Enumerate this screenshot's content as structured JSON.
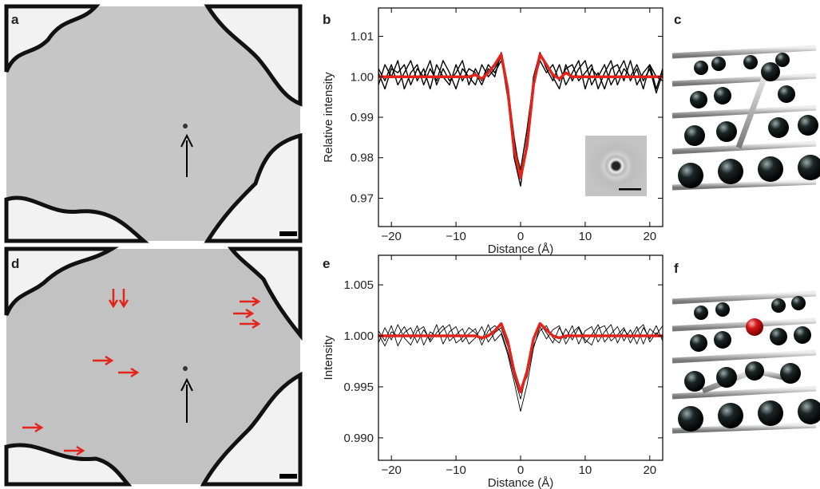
{
  "panels": [
    "a",
    "b",
    "c",
    "d",
    "e",
    "f"
  ],
  "chart_data": [
    {
      "type": "line",
      "xlabel": "Distance (Å)",
      "ylabel": "Relative intensity",
      "x": [
        -22,
        -21,
        -20,
        -19,
        -18,
        -17,
        -16,
        -15,
        -14,
        -13,
        -12,
        -11,
        -10,
        -9,
        -8,
        -7,
        -6,
        -5,
        -4,
        -3,
        -2,
        -1,
        0,
        1,
        2,
        3,
        4,
        5,
        6,
        7,
        8,
        9,
        10,
        11,
        12,
        13,
        14,
        15,
        16,
        17,
        18,
        19,
        20,
        21,
        22
      ],
      "xlim": [
        -22,
        22
      ],
      "xticks": [
        {
          "value": -20,
          "label": "−20"
        },
        {
          "value": -10,
          "label": "−10"
        },
        0,
        10,
        20
      ],
      "ylim": [
        0.963,
        1.017
      ],
      "yticks": [
        0.97,
        0.98,
        0.99,
        {
          "value": 1,
          "label": "1.00"
        },
        1.01
      ],
      "series": [
        {
          "color": "#000000",
          "linewidth": 1.4,
          "values": [
            1.002,
            0.999,
            1.003,
            0.998,
            1.001,
            1.004,
            0.999,
            1.002,
            0.997,
            1.003,
            1.0,
            0.998,
            1.003,
            0.999,
            1.002,
            1.001,
            0.998,
            1.002,
            1.0,
            1.006,
            0.996,
            0.98,
            0.973,
            0.985,
            1.0,
            1.006,
            1.002,
            0.999,
            1.003,
            0.998,
            1.001,
            1.004,
            0.997,
            1.002,
            1.0,
            1.003,
            0.998,
            1.001,
            1.004,
            0.999,
            1.002,
            0.997,
            1.003,
            1.0,
            0.999
          ]
        },
        {
          "color": "#000000",
          "linewidth": 1.4,
          "values": [
            0.998,
            1.003,
            1.0,
            1.004,
            0.997,
            1.001,
            1.003,
            0.998,
            1.002,
            0.999,
            1.004,
            1.001,
            0.997,
            1.002,
            1.0,
            0.998,
            1.003,
            1.0,
            1.002,
            1.005,
            0.995,
            0.983,
            0.977,
            0.987,
            0.999,
            1.005,
            1.003,
            1.0,
            0.997,
            1.003,
            0.999,
            1.002,
            1.004,
            0.998,
            1.001,
            0.997,
            1.002,
            1.003,
            0.999,
            1.004,
            0.998,
            1.001,
            1.003,
            0.997,
            1.002
          ]
        },
        {
          "color": "#000000",
          "linewidth": 1.4,
          "values": [
            1.001,
            0.997,
            1.002,
            1.001,
            1.003,
            0.998,
            1.002,
            1.0,
            1.004,
            0.998,
            1.002,
            0.999,
            1.001,
            1.004,
            0.998,
            1.002,
            0.999,
            1.003,
            1.001,
            1.004,
            0.998,
            0.985,
            0.975,
            0.982,
            0.998,
            1.004,
            1.001,
            1.003,
            0.999,
            1.002,
            1.003,
            0.999,
            1.001,
            1.003,
            0.997,
            1.001,
            1.004,
            0.998,
            1.002,
            1.0,
            1.003,
            0.999,
            1.002,
            0.996,
            1.001
          ]
        },
        {
          "color": "#e3241b",
          "linewidth": 3.5,
          "values": [
            1.0,
            1.0,
            1.0,
            1.0,
            1.0,
            1.0,
            1.0,
            1.0,
            1.0,
            1.0,
            1.0,
            1.0,
            1.0,
            1.0,
            1.0,
            1.0005,
            0.9995,
            1.001,
            1.003,
            1.0055,
            0.997,
            0.982,
            0.975,
            0.983,
            0.998,
            1.0055,
            1.003,
            1.0005,
            0.9995,
            1.001,
            1.0,
            1.0,
            1.0,
            1.0,
            1.0,
            1.0,
            1.0,
            1.0,
            1.0,
            1.0,
            1.0,
            1.0,
            1.0,
            1.0,
            1.0
          ]
        }
      ]
    },
    {
      "type": "line",
      "xlabel": "Distance (Å)",
      "ylabel": "Intensity",
      "x": [
        -22,
        -21,
        -20,
        -19,
        -18,
        -17,
        -16,
        -15,
        -14,
        -13,
        -12,
        -11,
        -10,
        -9,
        -8,
        -7,
        -6,
        -5,
        -4,
        -3,
        -2,
        -1,
        0,
        1,
        2,
        3,
        4,
        5,
        6,
        7,
        8,
        9,
        10,
        11,
        12,
        13,
        14,
        15,
        16,
        17,
        18,
        19,
        20,
        21,
        22
      ],
      "xlim": [
        -22,
        22
      ],
      "xticks": [
        {
          "value": -20,
          "label": "−20"
        },
        {
          "value": -10,
          "label": "−10"
        },
        0,
        10,
        20
      ],
      "ylim": [
        0.9878,
        1.0079
      ],
      "yticks": [
        {
          "value": 0.99,
          "label": "0.990"
        },
        0.995,
        {
          "value": 1,
          "label": "1.000"
        },
        1.005
      ],
      "series": [
        {
          "color": "#000000",
          "linewidth": 0.9,
          "values": [
            1.0005,
            0.9995,
            1.001,
            0.999,
            1.0003,
            1.0008,
            0.9993,
            1.0006,
            0.9996,
            1.0011,
            0.9992,
            1.0004,
            1.0009,
            0.9994,
            1.0002,
            1.0007,
            0.9991,
            1.0005,
            1.001,
            1.0004,
            0.9985,
            0.996,
            0.9938,
            0.9965,
            0.9995,
            1.0012,
            1.0003,
            0.9993,
            1.0008,
            0.9997,
            1.001,
            0.9992,
            1.0005,
            1.0009,
            0.9994,
            1.0004,
            1.0011,
            0.9993,
            1.0006,
            0.9998,
            1.0009,
            0.9992,
            1.0007,
            1.0001,
            1.001
          ]
        },
        {
          "color": "#000000",
          "linewidth": 0.9,
          "values": [
            0.9993,
            1.0008,
            0.9996,
            1.0011,
            0.9998,
            0.9991,
            1.0005,
            1.0009,
            0.9994,
            1.0003,
            1.001,
            0.9995,
            1.0001,
            1.0007,
            0.9992,
            0.9998,
            1.0009,
            0.9994,
            1.0003,
            1.0008,
            0.999,
            0.9968,
            0.9947,
            0.996,
            0.999,
            1.0005,
            1.001,
            0.9998,
            0.9993,
            1.0007,
            0.9996,
            1.0008,
            0.9993,
            1.0001,
            1.0011,
            0.9994,
            1.0002,
            1.0009,
            0.9995,
            1.0006,
            0.9992,
            1.0008,
            0.9997,
            1.001,
            0.9995
          ]
        },
        {
          "color": "#000000",
          "linewidth": 0.9,
          "values": [
            1.0002,
            0.999,
            1.0004,
            1.0,
            1.0009,
            0.9997,
            1.001,
            0.9991,
            1.0004,
            0.9999,
            1.0006,
            1.0011,
            0.9993,
            0.9998,
            1.0008,
            1.0003,
            0.9996,
            1.0011,
            0.9995,
            1.0002,
            0.9982,
            0.9955,
            0.9926,
            0.9952,
            0.9988,
            1.0009,
            0.9997,
            1.0006,
            1.001,
            0.9992,
            1.0003,
            1.0009,
            0.9996,
            0.9991,
            1.0007,
            1.001,
            0.9995,
            1.0001,
            1.0008,
            0.9993,
            1.0005,
            1.0011,
            0.9994,
            1.0003,
            0.9998
          ]
        },
        {
          "color": "#e3241b",
          "linewidth": 3.5,
          "values": [
            1.0,
            1.0,
            1.0,
            1.0,
            1.0,
            1.0,
            1.0,
            1.0,
            1.0,
            1.0,
            1.0,
            1.0,
            1.0,
            1.0,
            1.0,
            1.0,
            0.9998,
            1.0,
            1.0005,
            1.0012,
            0.9995,
            0.9965,
            0.9945,
            0.9965,
            0.9997,
            1.0012,
            1.0006,
            1.0,
            0.9998,
            1.0,
            1.0,
            1.0,
            1.0,
            1.0,
            1.0,
            1.0,
            1.0,
            1.0,
            1.0,
            1.0,
            1.0,
            1.0,
            1.0,
            1.0,
            1.0
          ]
        }
      ]
    }
  ]
}
